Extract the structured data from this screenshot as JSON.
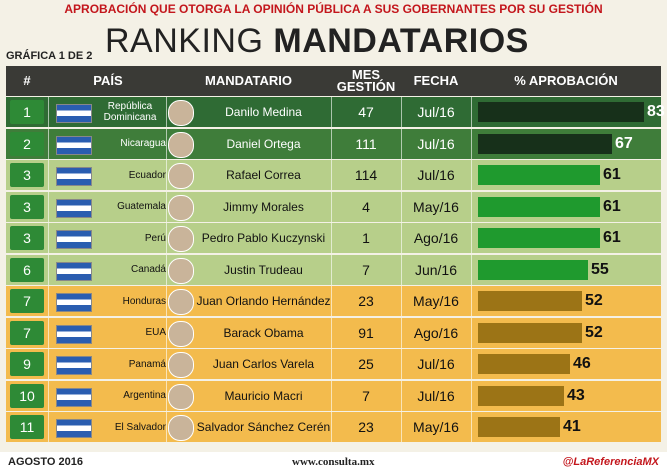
{
  "header": {
    "subtitle": "APROBACIÓN QUE OTORGA LA OPINIÓN PÚBLICA A SUS GOBERNANTES POR SU GESTIÓN",
    "chart_number": "GRÁFICA 1 DE 2",
    "title_light": "RANKING",
    "title_bold": "MANDATARIOS"
  },
  "columns": [
    "#",
    "PAÍS",
    "MANDATARIO",
    "MES GESTIÓN",
    "FECHA",
    "% APROBACIÓN"
  ],
  "rows": [
    {
      "rank": 1,
      "country": "República Dominicana",
      "leader": "Danilo Medina",
      "months": 47,
      "date": "Jul/16",
      "approval": 83,
      "bar_color": "#17301a",
      "row_color": "#2f6b34"
    },
    {
      "rank": 2,
      "country": "Nicaragua",
      "leader": "Daniel Ortega",
      "months": 111,
      "date": "Jul/16",
      "approval": 67,
      "bar_color": "#17301a",
      "row_color": "#3f7d3a"
    },
    {
      "rank": 3,
      "country": "Ecuador",
      "leader": "Rafael Correa",
      "months": 114,
      "date": "Jul/16",
      "approval": 61,
      "bar_color": "#1f9a2e",
      "row_color": "#b7cf8a"
    },
    {
      "rank": 3,
      "country": "Guatemala",
      "leader": "Jimmy Morales",
      "months": 4,
      "date": "May/16",
      "approval": 61,
      "bar_color": "#1f9a2e",
      "row_color": "#b7cf8a"
    },
    {
      "rank": 3,
      "country": "Perú",
      "leader": "Pedro Pablo Kuczynski",
      "months": 1,
      "date": "Ago/16",
      "approval": 61,
      "bar_color": "#1f9a2e",
      "row_color": "#b7cf8a"
    },
    {
      "rank": 6,
      "country": "Canadá",
      "leader": "Justin Trudeau",
      "months": 7,
      "date": "Jun/16",
      "approval": 55,
      "bar_color": "#1f9a2e",
      "row_color": "#b7cf8a"
    },
    {
      "rank": 7,
      "country": "Honduras",
      "leader": "Juan Orlando Hernández",
      "months": 23,
      "date": "May/16",
      "approval": 52,
      "bar_color": "#9c7416",
      "row_color": "#f3bb4d"
    },
    {
      "rank": 7,
      "country": "EUA",
      "leader": "Barack Obama",
      "months": 91,
      "date": "Ago/16",
      "approval": 52,
      "bar_color": "#9c7416",
      "row_color": "#f3bb4d"
    },
    {
      "rank": 9,
      "country": "Panamá",
      "leader": "Juan Carlos Varela",
      "months": 25,
      "date": "Jul/16",
      "approval": 46,
      "bar_color": "#9c7416",
      "row_color": "#f3bb4d"
    },
    {
      "rank": 10,
      "country": "Argentina",
      "leader": "Mauricio Macri",
      "months": 7,
      "date": "Jul/16",
      "approval": 43,
      "bar_color": "#9c7416",
      "row_color": "#f3bb4d"
    },
    {
      "rank": 11,
      "country": "El Salvador",
      "leader": "Salvador Sánchez Cerén",
      "months": 23,
      "date": "May/16",
      "approval": 41,
      "bar_color": "#9c7416",
      "row_color": "#f3bb4d"
    }
  ],
  "footer": {
    "date": "AGOSTO 2016",
    "site": "www.consulta.mx",
    "handle": "@LaReferenciaMX"
  }
}
